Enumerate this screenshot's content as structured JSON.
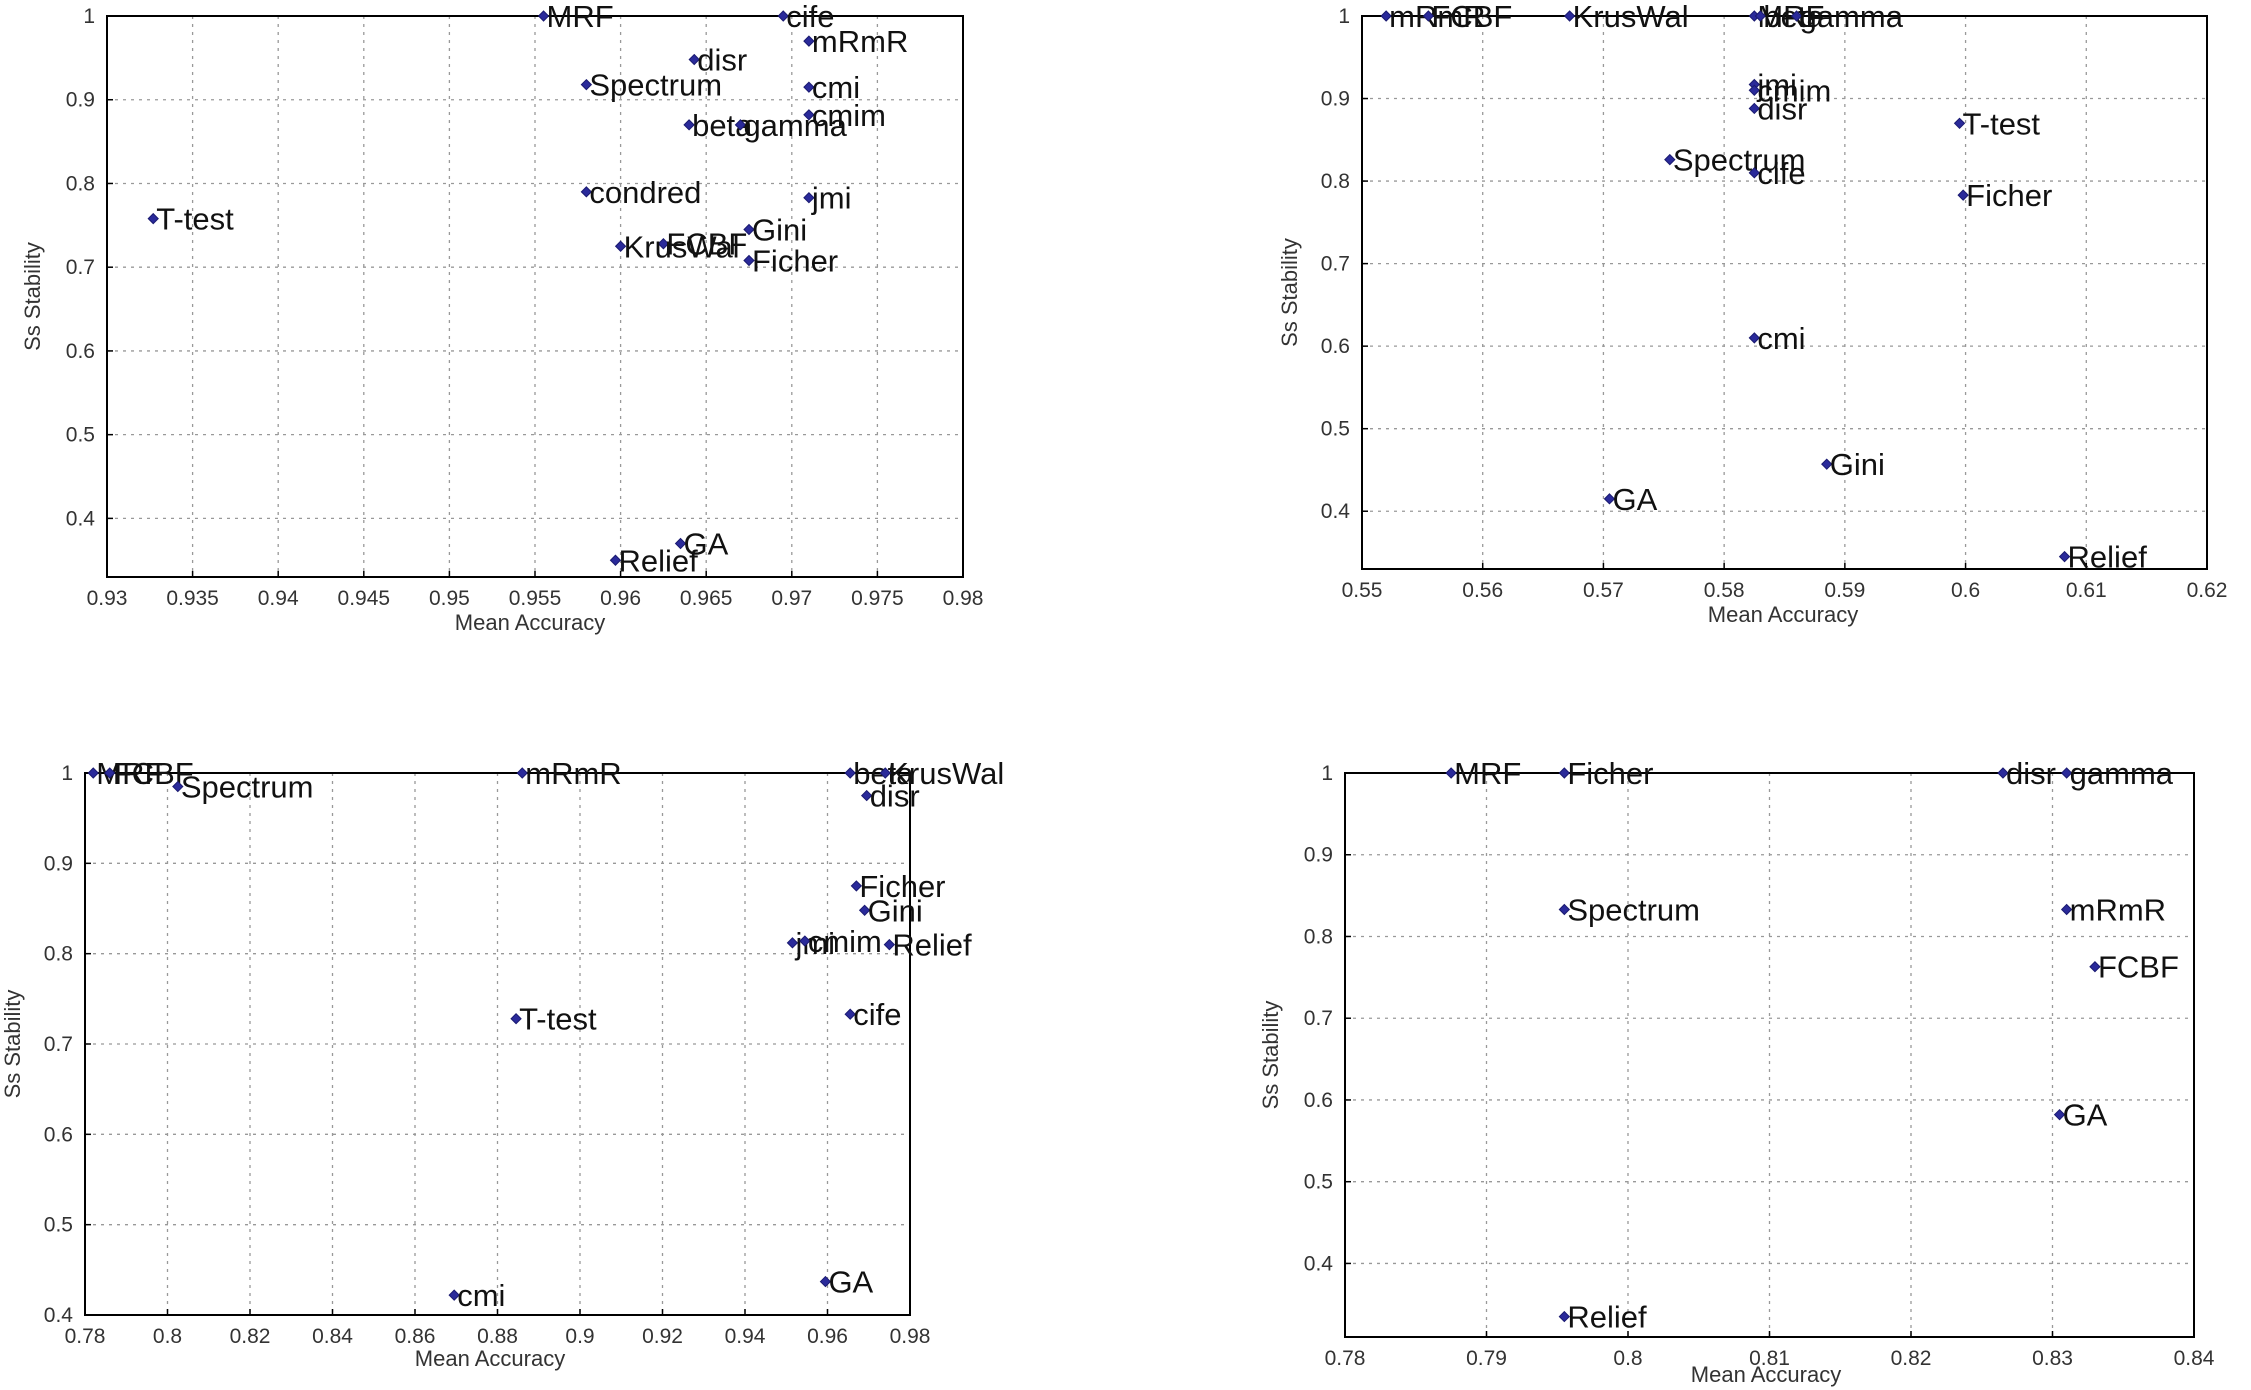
{
  "chart_data": [
    {
      "type": "scatter",
      "xlabel": "Mean Accuracy",
      "ylabel": "Ss Stability",
      "xlim": [
        0.93,
        0.98
      ],
      "ylim": [
        0.33,
        1
      ],
      "xticks": [
        "0.93",
        "0.935",
        "0.94",
        "0.945",
        "0.95",
        "0.955",
        "0.96",
        "0.965",
        "0.97",
        "0.975",
        "0.98"
      ],
      "yticks": [
        "0.4",
        "0.5",
        "0.6",
        "0.7",
        "0.8",
        "0.9",
        "1"
      ],
      "grid": true,
      "points": [
        {
          "label": "MRF",
          "x": 0.9555,
          "y": 1.0
        },
        {
          "label": "cife",
          "x": 0.9695,
          "y": 1.0
        },
        {
          "label": "mRmR",
          "x": 0.971,
          "y": 0.97
        },
        {
          "label": "disr",
          "x": 0.9643,
          "y": 0.948
        },
        {
          "label": "Spectrum",
          "x": 0.958,
          "y": 0.918
        },
        {
          "label": "cmi",
          "x": 0.971,
          "y": 0.915
        },
        {
          "label": "cmim",
          "x": 0.971,
          "y": 0.882
        },
        {
          "label": "beta",
          "x": 0.964,
          "y": 0.87
        },
        {
          "label": "gamma",
          "x": 0.967,
          "y": 0.87
        },
        {
          "label": "condred",
          "x": 0.958,
          "y": 0.79
        },
        {
          "label": "jmi",
          "x": 0.971,
          "y": 0.783
        },
        {
          "label": "T-test",
          "x": 0.9327,
          "y": 0.758
        },
        {
          "label": "Gini",
          "x": 0.9675,
          "y": 0.745
        },
        {
          "label": "FCBF",
          "x": 0.9625,
          "y": 0.728
        },
        {
          "label": "KrusWal",
          "x": 0.96,
          "y": 0.725
        },
        {
          "label": "Ficher",
          "x": 0.9675,
          "y": 0.708
        },
        {
          "label": "GA",
          "x": 0.9635,
          "y": 0.37
        },
        {
          "label": "Relief",
          "x": 0.9597,
          "y": 0.35
        }
      ]
    },
    {
      "type": "scatter",
      "xlabel": "Mean Accuracy",
      "ylabel": "Ss Stability",
      "xlim": [
        0.55,
        0.62
      ],
      "ylim": [
        0.33,
        1
      ],
      "xticks": [
        "0.55",
        "0.56",
        "0.57",
        "0.58",
        "0.59",
        "0.6",
        "0.61",
        "0.62"
      ],
      "yticks": [
        "0.4",
        "0.5",
        "0.6",
        "0.7",
        "0.8",
        "0.9",
        "1"
      ],
      "grid": true,
      "points": [
        {
          "label": "mRmR",
          "x": 0.552,
          "y": 1.0
        },
        {
          "label": "FCBF",
          "x": 0.5555,
          "y": 1.0
        },
        {
          "label": "KrusWal",
          "x": 0.5672,
          "y": 1.0
        },
        {
          "label": "MRF",
          "x": 0.5825,
          "y": 1.0
        },
        {
          "label": "beta",
          "x": 0.583,
          "y": 1.0
        },
        {
          "label": "gamma",
          "x": 0.586,
          "y": 1.0
        },
        {
          "label": "jmi",
          "x": 0.5825,
          "y": 0.917
        },
        {
          "label": "cmim",
          "x": 0.5825,
          "y": 0.91
        },
        {
          "label": "disr",
          "x": 0.5825,
          "y": 0.888
        },
        {
          "label": "T-test",
          "x": 0.5995,
          "y": 0.87
        },
        {
          "label": "Spectrum",
          "x": 0.5755,
          "y": 0.826
        },
        {
          "label": "cife",
          "x": 0.5825,
          "y": 0.81
        },
        {
          "label": "Ficher",
          "x": 0.5998,
          "y": 0.783
        },
        {
          "label": "cmi",
          "x": 0.5825,
          "y": 0.61
        },
        {
          "label": "Gini",
          "x": 0.5885,
          "y": 0.457
        },
        {
          "label": "GA",
          "x": 0.5705,
          "y": 0.415
        },
        {
          "label": "Relief",
          "x": 0.6082,
          "y": 0.345
        }
      ]
    },
    {
      "type": "scatter",
      "xlabel": "Mean Accuracy",
      "ylabel": "Ss Stability",
      "xlim": [
        0.78,
        0.98
      ],
      "ylim": [
        0.4,
        1
      ],
      "xticks": [
        "0.78",
        "0.8",
        "0.82",
        "0.84",
        "0.86",
        "0.88",
        "0.9",
        "0.92",
        "0.94",
        "0.96",
        "0.98"
      ],
      "yticks": [
        "0.4",
        "0.5",
        "0.6",
        "0.7",
        "0.8",
        "0.9",
        "1"
      ],
      "grid": true,
      "points": [
        {
          "label": "MRF",
          "x": 0.782,
          "y": 1.0
        },
        {
          "label": "FCBF",
          "x": 0.786,
          "y": 1.0
        },
        {
          "label": "Spectrum",
          "x": 0.8025,
          "y": 0.985
        },
        {
          "label": "mRmR",
          "x": 0.886,
          "y": 1.0
        },
        {
          "label": "beta",
          "x": 0.9655,
          "y": 1.0
        },
        {
          "label": "KrusWal",
          "x": 0.974,
          "y": 1.0
        },
        {
          "label": "disr",
          "x": 0.9695,
          "y": 0.975
        },
        {
          "label": "Ficher",
          "x": 0.967,
          "y": 0.875
        },
        {
          "label": "Gini",
          "x": 0.969,
          "y": 0.848
        },
        {
          "label": "jmi",
          "x": 0.9515,
          "y": 0.812
        },
        {
          "label": "cmim",
          "x": 0.9545,
          "y": 0.814
        },
        {
          "label": "Relief",
          "x": 0.975,
          "y": 0.81
        },
        {
          "label": "cife",
          "x": 0.9655,
          "y": 0.733
        },
        {
          "label": "T-test",
          "x": 0.8845,
          "y": 0.728
        },
        {
          "label": "GA",
          "x": 0.9595,
          "y": 0.437
        },
        {
          "label": "cmi",
          "x": 0.8695,
          "y": 0.422
        }
      ]
    },
    {
      "type": "scatter",
      "xlabel": "Mean Accuracy",
      "ylabel": "Ss Stability",
      "xlim": [
        0.78,
        0.84
      ],
      "ylim": [
        0.31,
        1
      ],
      "xticks": [
        "0.78",
        "0.79",
        "0.8",
        "0.81",
        "0.82",
        "0.83",
        "0.84"
      ],
      "yticks": [
        "0.4",
        "0.5",
        "0.6",
        "0.7",
        "0.8",
        "0.9",
        "1"
      ],
      "grid": true,
      "points": [
        {
          "label": "MRF",
          "x": 0.7875,
          "y": 1.0
        },
        {
          "label": "Ficher",
          "x": 0.7955,
          "y": 1.0
        },
        {
          "label": "disr",
          "x": 0.8265,
          "y": 1.0
        },
        {
          "label": "gamma",
          "x": 0.831,
          "y": 1.0
        },
        {
          "label": "Spectrum",
          "x": 0.7955,
          "y": 0.833
        },
        {
          "label": "mRmR",
          "x": 0.831,
          "y": 0.833
        },
        {
          "label": "FCBF",
          "x": 0.833,
          "y": 0.763
        },
        {
          "label": "GA",
          "x": 0.8305,
          "y": 0.582
        },
        {
          "label": "Relief",
          "x": 0.7955,
          "y": 0.335
        }
      ]
    }
  ]
}
